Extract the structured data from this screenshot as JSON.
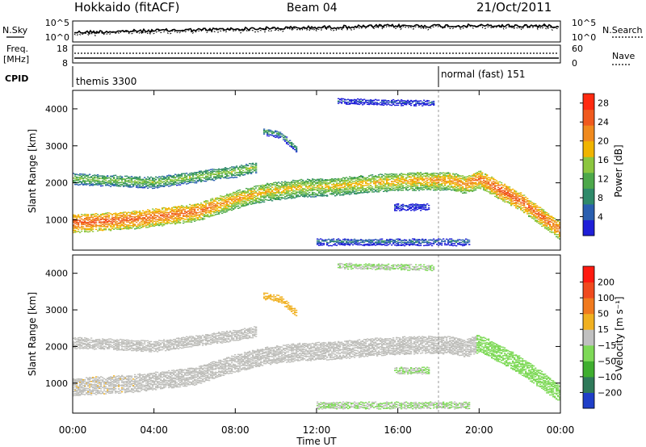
{
  "header": {
    "title_left": "Hokkaido (fitACF)",
    "title_center": "Beam 04",
    "title_right": "21/Oct/2011"
  },
  "top_panels": {
    "nsky_label": "N.Sky",
    "nsearch_label": "N.Search",
    "freq_label_1": "Freq.",
    "freq_label_2": "[MHz]",
    "nave_label": "Nave",
    "cpid_label": "CPID",
    "nsky_ticks": [
      "10^5",
      "10^0"
    ],
    "nsearch_ticks": [
      "10^5",
      "10^0"
    ],
    "freq_ticks": [
      "18",
      "8"
    ],
    "nave_ticks": [
      "60",
      "0"
    ],
    "cpid_segments": [
      {
        "label": "themis 3300",
        "start_hour": 0.0,
        "end_hour": 18.0
      },
      {
        "label": "normal (fast) 151",
        "start_hour": 18.0,
        "end_hour": 24.0
      }
    ]
  },
  "chart_data": [
    {
      "type": "heatmap",
      "title": "",
      "ylabel": "Slant Range [km]",
      "xlabel": "",
      "xlim": [
        0,
        24
      ],
      "ylim": [
        180,
        4500
      ],
      "y_ticks": [
        "1000",
        "2000",
        "3000",
        "4000"
      ],
      "y_tick_values": [
        1000,
        2000,
        3000,
        4000
      ],
      "colorbar": {
        "label": "Power [dB]",
        "ticks": [
          "4",
          "8",
          "12",
          "16",
          "20",
          "24",
          "28"
        ],
        "tick_values": [
          4,
          8,
          12,
          16,
          20,
          24,
          28
        ],
        "range": [
          0,
          30
        ],
        "colors": [
          "#1f1fd8",
          "#2a5fb0",
          "#2f8a6a",
          "#4da84a",
          "#8cc63f",
          "#f0b400",
          "#f08a1e",
          "#f05a1e",
          "#ff2a10"
        ]
      },
      "echo_bands": [
        {
          "name": "main",
          "start": 0.0,
          "end": 24.0,
          "center": [
            [
              0,
              900
            ],
            [
              3,
              1000
            ],
            [
              6,
              1200
            ],
            [
              8,
              1550
            ],
            [
              9.5,
              1750
            ],
            [
              11,
              1850
            ],
            [
              13,
              1900
            ],
            [
              15,
              2000
            ],
            [
              17,
              2050
            ],
            [
              18.5,
              2050
            ],
            [
              19.3,
              1950
            ],
            [
              20,
              2100
            ],
            [
              22,
              1500
            ],
            [
              24,
              700
            ]
          ],
          "width": 500,
          "power": [
            [
              0,
              26
            ],
            [
              6,
              24
            ],
            [
              9,
              20
            ],
            [
              12,
              18
            ],
            [
              16,
              20
            ],
            [
              19,
              22
            ],
            [
              21,
              26
            ],
            [
              24,
              24
            ]
          ]
        },
        {
          "name": "upper-streaks",
          "start": 0.0,
          "end": 9.0,
          "center": [
            [
              0,
              2100
            ],
            [
              4,
              2000
            ],
            [
              8,
              2300
            ],
            [
              9,
              2400
            ]
          ],
          "width": 300,
          "power": [
            [
              0,
              15
            ],
            [
              9,
              16
            ]
          ]
        },
        {
          "name": "mid-patch",
          "start": 9.3,
          "end": 11.0,
          "center": [
            [
              9.3,
              3400
            ],
            [
              10.2,
              3300
            ],
            [
              11,
              2900
            ]
          ],
          "width": 200,
          "power": [
            [
              9.3,
              12
            ],
            [
              11,
              10
            ]
          ]
        },
        {
          "name": "top-patch",
          "start": 13.0,
          "end": 17.8,
          "center": [
            [
              13,
              4200
            ],
            [
              17.8,
              4150
            ]
          ],
          "width": 150,
          "power": [
            [
              13,
              6
            ],
            [
              17.8,
              6
            ]
          ]
        },
        {
          "name": "low-patch",
          "start": 15.8,
          "end": 17.5,
          "center": [
            [
              15.8,
              1350
            ],
            [
              17.5,
              1350
            ]
          ],
          "width": 200,
          "power": [
            [
              15.8,
              5
            ],
            [
              17.5,
              5
            ]
          ]
        },
        {
          "name": "ground",
          "start": 12.0,
          "end": 19.5,
          "center": [
            [
              12,
              400
            ],
            [
              19.5,
              400
            ]
          ],
          "width": 200,
          "power": [
            [
              12,
              8
            ],
            [
              19.5,
              8
            ]
          ]
        }
      ]
    },
    {
      "type": "heatmap",
      "title": "",
      "ylabel": "Slant Range [km]",
      "xlabel": "Time UT",
      "xlim": [
        0,
        24
      ],
      "ylim": [
        180,
        4500
      ],
      "x_ticks": [
        "00:00",
        "04:00",
        "08:00",
        "12:00",
        "16:00",
        "20:00",
        "00:00"
      ],
      "x_tick_values": [
        0,
        4,
        8,
        12,
        16,
        20,
        24
      ],
      "y_ticks": [
        "1000",
        "2000",
        "3000",
        "4000"
      ],
      "y_tick_values": [
        1000,
        2000,
        3000,
        4000
      ],
      "colorbar": {
        "label": "Velocity [m s⁻¹]",
        "ticks": [
          "200",
          "100",
          "50",
          "15",
          "−15",
          "−50",
          "−100",
          "−200"
        ],
        "tick_values": [
          200,
          100,
          50,
          15,
          -15,
          -50,
          -100,
          -200
        ],
        "colors": [
          "#1f3fc8",
          "#2f7a5a",
          "#3fae2f",
          "#7ed957",
          "#c0c0c0",
          "#f0b020",
          "#f07a1e",
          "#f04a1e",
          "#ff1a10"
        ]
      },
      "ground_scatter_color": "#bfbfbb"
    }
  ]
}
